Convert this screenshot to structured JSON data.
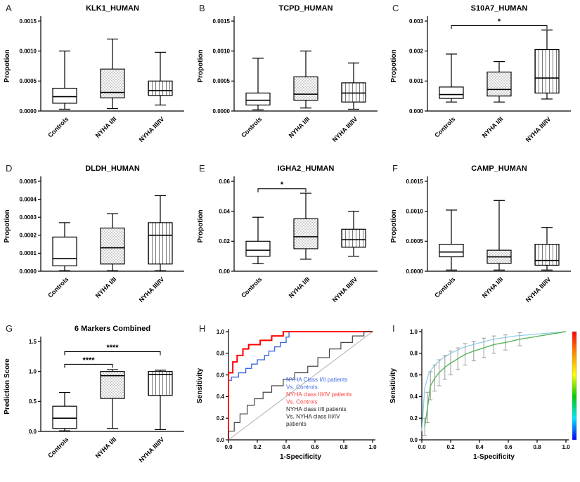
{
  "chart_data": [
    {
      "type": "box",
      "letter": "A",
      "title": "KLK1_HUMAN",
      "ylabel": "Propotion",
      "ylim": [
        0,
        0.0015
      ],
      "yticks": [
        "0.0000",
        "0.0005",
        "0.0010",
        "0.0015"
      ],
      "categories": [
        "Controls",
        "NYHA I/II",
        "NYHA III/IV"
      ],
      "boxes": [
        {
          "lo": 3e-05,
          "q1": 0.00013,
          "med": 0.00024,
          "q3": 0.00038,
          "hi": 0.001
        },
        {
          "lo": 4e-05,
          "q1": 0.00022,
          "med": 0.00031,
          "q3": 0.0007,
          "hi": 0.0012
        },
        {
          "lo": 0.0001,
          "q1": 0.00026,
          "med": 0.00034,
          "q3": 0.0005,
          "hi": 0.00098
        }
      ],
      "sig": []
    },
    {
      "type": "box",
      "letter": "B",
      "title": "TCPD_HUMAN",
      "ylabel": "Propotion",
      "ylim": [
        0,
        0.0015
      ],
      "yticks": [
        "0.0000",
        "0.0005",
        "0.0010",
        "0.0015"
      ],
      "categories": [
        "Controls",
        "NYHA I/II",
        "NYHA III/IV"
      ],
      "boxes": [
        {
          "lo": 2e-05,
          "q1": 0.0001,
          "med": 0.00018,
          "q3": 0.0003,
          "hi": 0.00088
        },
        {
          "lo": 5e-05,
          "q1": 0.00018,
          "med": 0.00028,
          "q3": 0.00057,
          "hi": 0.001
        },
        {
          "lo": 3e-05,
          "q1": 0.00015,
          "med": 0.0003,
          "q3": 0.00047,
          "hi": 0.0008
        }
      ],
      "sig": []
    },
    {
      "type": "box",
      "letter": "C",
      "title": "S10A7_HUMAN",
      "ylabel": "Propotion",
      "ylim": [
        0,
        0.003
      ],
      "yticks": [
        "0.000",
        "0.001",
        "0.002",
        "0.003"
      ],
      "categories": [
        "Controls",
        "NYHA I/II",
        "NYHA III/IV"
      ],
      "boxes": [
        {
          "lo": 0.0003,
          "q1": 0.00042,
          "med": 0.00055,
          "q3": 0.0008,
          "hi": 0.0019
        },
        {
          "lo": 0.0003,
          "q1": 0.0005,
          "med": 0.00072,
          "q3": 0.0013,
          "hi": 0.00165
        },
        {
          "lo": 0.0004,
          "q1": 0.0006,
          "med": 0.0011,
          "q3": 0.00205,
          "hi": 0.0027
        }
      ],
      "sig": [
        {
          "a": 0,
          "b": 2,
          "y": 0.00285,
          "label": "*"
        }
      ]
    },
    {
      "type": "box",
      "letter": "D",
      "title": "DLDH_HUMAN",
      "ylabel": "Propotion",
      "ylim": [
        0,
        0.0005
      ],
      "yticks": [
        "0.0000",
        "0.0001",
        "0.0002",
        "0.0003",
        "0.0004",
        "0.0005"
      ],
      "categories": [
        "Controls",
        "NYHA I/II",
        "NYHA III/IV"
      ],
      "boxes": [
        {
          "lo": 3e-06,
          "q1": 3e-05,
          "med": 7e-05,
          "q3": 0.00019,
          "hi": 0.00027
        },
        {
          "lo": 3e-06,
          "q1": 4e-05,
          "med": 0.00013,
          "q3": 0.00024,
          "hi": 0.00032
        },
        {
          "lo": 3e-06,
          "q1": 4e-05,
          "med": 0.0002,
          "q3": 0.00027,
          "hi": 0.00042
        }
      ],
      "sig": []
    },
    {
      "type": "box",
      "letter": "E",
      "title": "IGHA2_HUMAN",
      "ylabel": "Propotion",
      "ylim": [
        0,
        0.06
      ],
      "yticks": [
        "0.00",
        "0.02",
        "0.04",
        "0.06"
      ],
      "categories": [
        "Controls",
        "NYHA I/II",
        "NYHA III/IV"
      ],
      "boxes": [
        {
          "lo": 0.005,
          "q1": 0.01,
          "med": 0.014,
          "q3": 0.02,
          "hi": 0.036
        },
        {
          "lo": 0.008,
          "q1": 0.015,
          "med": 0.023,
          "q3": 0.035,
          "hi": 0.052
        },
        {
          "lo": 0.01,
          "q1": 0.016,
          "med": 0.021,
          "q3": 0.028,
          "hi": 0.04
        }
      ],
      "sig": [
        {
          "a": 0,
          "b": 1,
          "y": 0.055,
          "label": "*"
        }
      ]
    },
    {
      "type": "box",
      "letter": "F",
      "title": "CAMP_HUMAN",
      "ylabel": "Propotion",
      "ylim": [
        0,
        0.0015
      ],
      "yticks": [
        "0.0000",
        "0.0005",
        "0.0010",
        "0.0015"
      ],
      "categories": [
        "Controls",
        "NYHA I/II",
        "NYHA III/IV"
      ],
      "boxes": [
        {
          "lo": 2e-05,
          "q1": 0.00024,
          "med": 0.00032,
          "q3": 0.00045,
          "hi": 0.00102
        },
        {
          "lo": 2e-05,
          "q1": 0.00013,
          "med": 0.00024,
          "q3": 0.00035,
          "hi": 0.00118
        },
        {
          "lo": 2e-05,
          "q1": 0.0001,
          "med": 0.00018,
          "q3": 0.00045,
          "hi": 0.00073
        }
      ],
      "sig": []
    },
    {
      "type": "box",
      "letter": "G",
      "title": "6 Markers Combined",
      "ylabel": "Prediction Score",
      "ylim": [
        0,
        1.5
      ],
      "yticks": [
        "0.0",
        "0.5",
        "1.0",
        "1.5"
      ],
      "categories": [
        "Controls",
        "NYHA I/II",
        "NYHA III/IV"
      ],
      "boxes": [
        {
          "lo": 0.01,
          "q1": 0.05,
          "med": 0.22,
          "q3": 0.42,
          "hi": 0.65
        },
        {
          "lo": 0.05,
          "q1": 0.55,
          "med": 0.93,
          "q3": 1.0,
          "hi": 1.03
        },
        {
          "lo": 0.03,
          "q1": 0.6,
          "med": 0.95,
          "q3": 1.0,
          "hi": 1.02
        }
      ],
      "sig": [
        {
          "a": 0,
          "b": 1,
          "y": 1.12,
          "label": "****"
        },
        {
          "a": 0,
          "b": 2,
          "y": 1.33,
          "label": "****"
        }
      ]
    },
    {
      "type": "roc",
      "letter": "H",
      "xlabel": "1-Specificity",
      "ylabel": "Sensitivity",
      "xticks": [
        "0.0",
        "0.2",
        "0.4",
        "0.6",
        "0.8",
        "1.0"
      ],
      "yticks": [
        "0.0",
        "0.2",
        "0.4",
        "0.6",
        "0.8",
        "1.0"
      ],
      "diagonal": true,
      "diagonal_color": "#b0b0b0",
      "series": [
        {
          "name": "NYHA Class I/II patients Vs. Controls",
          "color": "#4169e1",
          "width": 1.4,
          "points": [
            [
              0,
              0
            ],
            [
              0,
              0.55
            ],
            [
              0.02,
              0.55
            ],
            [
              0.02,
              0.58
            ],
            [
              0.07,
              0.58
            ],
            [
              0.07,
              0.62
            ],
            [
              0.12,
              0.62
            ],
            [
              0.12,
              0.66
            ],
            [
              0.16,
              0.66
            ],
            [
              0.16,
              0.7
            ],
            [
              0.2,
              0.7
            ],
            [
              0.2,
              0.74
            ],
            [
              0.25,
              0.74
            ],
            [
              0.25,
              0.78
            ],
            [
              0.28,
              0.78
            ],
            [
              0.28,
              0.82
            ],
            [
              0.32,
              0.82
            ],
            [
              0.32,
              0.86
            ],
            [
              0.36,
              0.86
            ],
            [
              0.36,
              0.9
            ],
            [
              0.4,
              0.9
            ],
            [
              0.4,
              0.95
            ],
            [
              0.42,
              0.95
            ],
            [
              0.42,
              1.0
            ],
            [
              1,
              1
            ]
          ]
        },
        {
          "name": "NYHA class III/IV patients Vs. Controls",
          "color": "#ff0000",
          "width": 2,
          "points": [
            [
              0,
              0
            ],
            [
              0,
              0.62
            ],
            [
              0.03,
              0.62
            ],
            [
              0.03,
              0.72
            ],
            [
              0.06,
              0.72
            ],
            [
              0.06,
              0.78
            ],
            [
              0.1,
              0.78
            ],
            [
              0.1,
              0.84
            ],
            [
              0.14,
              0.84
            ],
            [
              0.14,
              0.88
            ],
            [
              0.22,
              0.88
            ],
            [
              0.22,
              0.92
            ],
            [
              0.3,
              0.92
            ],
            [
              0.3,
              0.96
            ],
            [
              0.38,
              0.96
            ],
            [
              0.38,
              1.0
            ],
            [
              1,
              1
            ]
          ]
        },
        {
          "name": "NYHA class I/II patients Vs. NYHA class III/IV patients",
          "color": "#444444",
          "width": 1.2,
          "points": [
            [
              0,
              0
            ],
            [
              0,
              0.08
            ],
            [
              0.04,
              0.08
            ],
            [
              0.04,
              0.16
            ],
            [
              0.08,
              0.16
            ],
            [
              0.08,
              0.24
            ],
            [
              0.13,
              0.24
            ],
            [
              0.13,
              0.32
            ],
            [
              0.18,
              0.32
            ],
            [
              0.18,
              0.38
            ],
            [
              0.24,
              0.38
            ],
            [
              0.24,
              0.44
            ],
            [
              0.3,
              0.44
            ],
            [
              0.3,
              0.5
            ],
            [
              0.38,
              0.5
            ],
            [
              0.38,
              0.56
            ],
            [
              0.46,
              0.56
            ],
            [
              0.46,
              0.62
            ],
            [
              0.55,
              0.62
            ],
            [
              0.55,
              0.68
            ],
            [
              0.62,
              0.68
            ],
            [
              0.62,
              0.76
            ],
            [
              0.7,
              0.76
            ],
            [
              0.7,
              0.84
            ],
            [
              0.78,
              0.84
            ],
            [
              0.78,
              0.9
            ],
            [
              0.86,
              0.9
            ],
            [
              0.86,
              0.96
            ],
            [
              0.94,
              0.96
            ],
            [
              0.94,
              1.0
            ],
            [
              1,
              1
            ]
          ]
        }
      ],
      "legend": [
        {
          "color": "#4169e1",
          "lines": [
            "NYHA Class I/II  patients",
            "Vs. Controls"
          ]
        },
        {
          "color": "#ff4040",
          "lines": [
            "NYHA class III/IV  patients",
            "Vs. Controls"
          ]
        },
        {
          "color": "#222222",
          "lines": [
            "NYHA class I/II  patients",
            "Vs. NYHA class III/IV",
            "patients"
          ]
        }
      ]
    },
    {
      "type": "roc_ci",
      "letter": "I",
      "xlabel": "1-Specificity",
      "ylabel": "Sensitivity",
      "xticks": [
        "0.0",
        "0.2",
        "0.4",
        "0.6",
        "0.8",
        "1.0"
      ],
      "yticks": [
        "0.0",
        "0.2",
        "0.4",
        "0.6",
        "0.8",
        "1.0"
      ],
      "curve_color": "#5ab55a",
      "band_color": "#8fd0e8",
      "errorbar_color": "#9a9a9a",
      "colorbar": [
        "#ff0000",
        "#ff8c00",
        "#ffff00",
        "#00cc00",
        "#00e5ff",
        "#0000ff"
      ],
      "mean_points": [
        [
          0.02,
          0.12
        ],
        [
          0.04,
          0.3
        ],
        [
          0.06,
          0.5
        ],
        [
          0.09,
          0.57
        ],
        [
          0.12,
          0.62
        ],
        [
          0.16,
          0.67
        ],
        [
          0.2,
          0.71
        ],
        [
          0.25,
          0.75
        ],
        [
          0.3,
          0.79
        ],
        [
          0.36,
          0.82
        ],
        [
          0.43,
          0.85
        ],
        [
          0.5,
          0.88
        ],
        [
          0.58,
          0.9
        ],
        [
          0.68,
          0.93
        ],
        [
          1.0,
          1.0
        ]
      ],
      "errors": [
        0.08,
        0.14,
        0.13,
        0.12,
        0.12,
        0.11,
        0.11,
        0.1,
        0.1,
        0.09,
        0.09,
        0.08,
        0.07,
        0.06,
        0
      ],
      "smooth_points": [
        [
          0.0,
          0.08
        ],
        [
          0.02,
          0.48
        ],
        [
          0.05,
          0.62
        ],
        [
          0.09,
          0.69
        ],
        [
          0.14,
          0.75
        ],
        [
          0.2,
          0.8
        ],
        [
          0.28,
          0.85
        ],
        [
          0.38,
          0.89
        ],
        [
          0.5,
          0.93
        ],
        [
          0.65,
          0.96
        ],
        [
          1.0,
          1.0
        ]
      ]
    }
  ]
}
